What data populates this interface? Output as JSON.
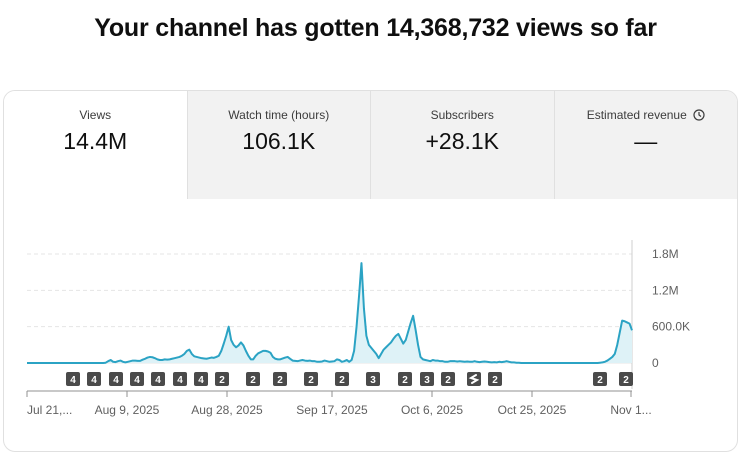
{
  "headline": "Your channel has gotten 14,368,732 views so far",
  "tabs": [
    {
      "label": "Views",
      "value": "14.4M",
      "active": true
    },
    {
      "label": "Watch time (hours)",
      "value": "106.1K",
      "active": false
    },
    {
      "label": "Subscribers",
      "value": "+28.1K",
      "active": false
    },
    {
      "label": "Estimated revenue",
      "value": "—",
      "active": false,
      "icon": "clock-icon"
    }
  ],
  "chart_data": {
    "type": "area",
    "series": [
      {
        "values": [
          0,
          0,
          0,
          0,
          0,
          0,
          0,
          0,
          0,
          0,
          0,
          0,
          0,
          0,
          0,
          0,
          0,
          0,
          0,
          0,
          0,
          0,
          0,
          0,
          0,
          0,
          0,
          0,
          0,
          0,
          0,
          0,
          5000,
          30000,
          50000,
          20000,
          15000,
          30000,
          40000,
          20000,
          10000,
          20000,
          30000,
          40000,
          40000,
          35000,
          35000,
          55000,
          70000,
          90000,
          100000,
          95000,
          80000,
          60000,
          50000,
          50000,
          60000,
          55000,
          60000,
          70000,
          80000,
          90000,
          100000,
          120000,
          150000,
          200000,
          220000,
          150000,
          110000,
          100000,
          90000,
          80000,
          75000,
          70000,
          80000,
          90000,
          85000,
          100000,
          120000,
          200000,
          320000,
          450000,
          600000,
          380000,
          300000,
          260000,
          290000,
          340000,
          290000,
          200000,
          120000,
          60000,
          60000,
          120000,
          160000,
          180000,
          200000,
          200000,
          190000,
          170000,
          100000,
          70000,
          60000,
          60000,
          75000,
          90000,
          100000,
          70000,
          40000,
          35000,
          30000,
          40000,
          50000,
          40000,
          35000,
          40000,
          30000,
          30000,
          20000,
          20000,
          25000,
          40000,
          30000,
          20000,
          25000,
          30000,
          60000,
          50000,
          20000,
          30000,
          50000,
          20000,
          50000,
          200000,
          600000,
          1100000,
          1650000,
          900000,
          450000,
          300000,
          250000,
          200000,
          150000,
          80000,
          150000,
          220000,
          260000,
          300000,
          340000,
          400000,
          450000,
          480000,
          400000,
          320000,
          380000,
          520000,
          660000,
          780000,
          550000,
          300000,
          100000,
          60000,
          50000,
          40000,
          30000,
          50000,
          40000,
          40000,
          30000,
          30000,
          20000,
          20000,
          30000,
          30000,
          30000,
          25000,
          30000,
          25000,
          20000,
          25000,
          20000,
          20000,
          30000,
          20000,
          15000,
          20000,
          25000,
          20000,
          15000,
          10000,
          15000,
          10000,
          20000,
          15000,
          20000,
          30000,
          20000,
          10000,
          10000,
          5000,
          5000,
          0,
          0,
          0,
          0,
          0,
          0,
          0,
          0,
          0,
          0,
          0,
          0,
          0,
          0,
          0,
          0,
          0,
          0,
          0,
          0,
          0,
          0,
          0,
          0,
          0,
          0,
          0,
          0,
          0,
          0,
          0,
          0,
          5000,
          10000,
          20000,
          40000,
          70000,
          100000,
          150000,
          300000,
          500000,
          700000,
          690000,
          670000,
          650000,
          540000
        ]
      }
    ],
    "y_ticks": [
      "1.8M",
      "1.2M",
      "600.0K",
      "0"
    ],
    "y_tick_values": [
      1800000,
      1200000,
      600000,
      0
    ],
    "ylim": [
      0,
      1900000
    ],
    "x_tick_labels": [
      "Jul 21,...",
      "Aug 9, 2025",
      "Aug 28, 2025",
      "Sep 17, 2025",
      "Oct 6, 2025",
      "Oct 25, 2025",
      "Nov 1..."
    ],
    "badges": [
      "4",
      "4",
      "4",
      "4",
      "4",
      "4",
      "4",
      "2",
      "2",
      "2",
      "2",
      "2",
      "3",
      "2",
      "3",
      "2",
      "shorts-icon",
      "2",
      "2",
      "2"
    ],
    "colors": {
      "line": "#2ba3c4",
      "fill": "#def2f7",
      "grid": "#e5e5e5",
      "badge": "#4a4a4a",
      "axis": "#909090"
    }
  }
}
